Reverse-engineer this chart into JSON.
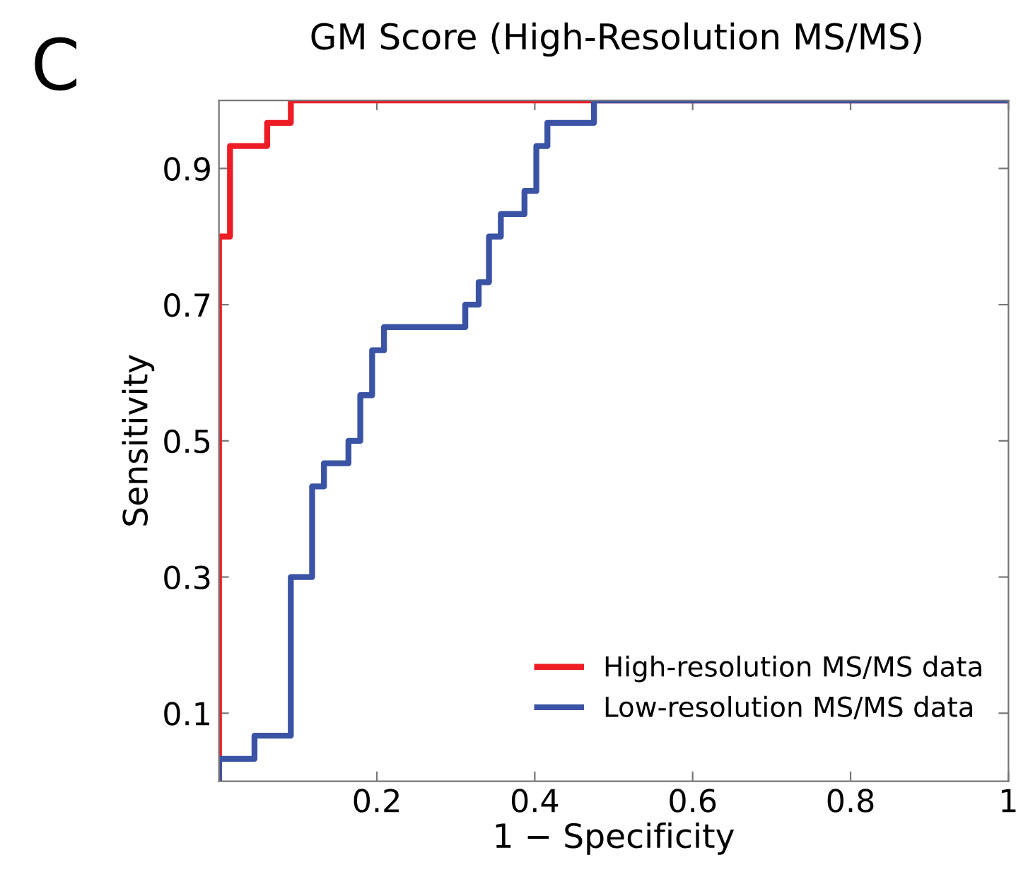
{
  "chart_data": {
    "type": "step",
    "title": "GM Score (High-Resolution MS/MS)",
    "xlabel": "1 − Specificity",
    "ylabel": "Sensitivity",
    "annotations": [
      "C"
    ],
    "series": [
      {
        "name": "High-resolution MS/MS data",
        "color": "#ee1c25",
        "x": [
          0,
          0,
          0.014,
          0.061,
          0.091,
          1
        ],
        "values": [
          0,
          0.8,
          0.933,
          0.967,
          1,
          1
        ]
      },
      {
        "name": "Low-resolution MS/MS data",
        "color": "#3a53a4",
        "x": [
          0,
          0,
          0.045,
          0.091,
          0.118,
          0.133,
          0.164,
          0.179,
          0.194,
          0.209,
          0.312,
          0.329,
          0.342,
          0.357,
          0.387,
          0.402,
          0.416,
          0.475,
          1
        ],
        "values": [
          0,
          0.033,
          0.067,
          0.3,
          0.433,
          0.467,
          0.5,
          0.567,
          0.633,
          0.667,
          0.7,
          0.733,
          0.8,
          0.833,
          0.867,
          0.933,
          0.967,
          1,
          1
        ]
      }
    ],
    "xlim": [
      0,
      1
    ],
    "ylim": [
      0,
      1
    ],
    "xticks": [
      0.2,
      0.4,
      0.6,
      0.8,
      1
    ],
    "yticks": [
      0.1,
      0.3,
      0.5,
      0.7,
      0.9
    ],
    "grid": false,
    "legend": "bottom right",
    "line_style": "solid",
    "marker": "none"
  }
}
